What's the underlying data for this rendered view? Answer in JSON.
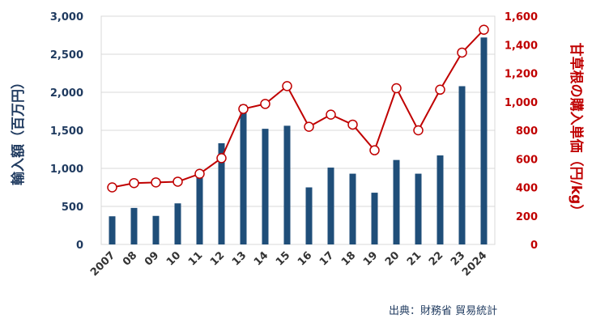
{
  "chart_data": {
    "type": "bar+line",
    "categories": [
      "2007",
      "08",
      "09",
      "10",
      "11",
      "12",
      "13",
      "14",
      "15",
      "16",
      "17",
      "18",
      "19",
      "20",
      "21",
      "22",
      "23",
      "2024"
    ],
    "series": [
      {
        "name": "輸入額（百万円）",
        "type": "bar",
        "axis": "left",
        "color": "#1f4e79",
        "values": [
          370,
          480,
          375,
          540,
          880,
          1330,
          1840,
          1520,
          1560,
          750,
          1010,
          930,
          680,
          1110,
          930,
          1170,
          2080,
          2720
        ]
      },
      {
        "name": "甘草根の購入単価（円/kg）",
        "type": "line",
        "axis": "right",
        "color": "#c00000",
        "values": [
          400,
          430,
          435,
          440,
          495,
          605,
          950,
          985,
          1110,
          825,
          910,
          840,
          660,
          1095,
          800,
          1085,
          1345,
          1505
        ]
      }
    ],
    "y_left": {
      "label": "輸入額（百万円）",
      "range": [
        0,
        3000
      ],
      "ticks": [
        0,
        500,
        1000,
        1500,
        2000,
        2500,
        3000
      ],
      "tick_labels": [
        "0",
        "500",
        "1,000",
        "1,500",
        "2,000",
        "2,500",
        "3,000"
      ],
      "color": "#1f3a5f"
    },
    "y_right": {
      "label": "甘草根の購入単価（円/kg）",
      "range": [
        0,
        1600
      ],
      "ticks": [
        0,
        200,
        400,
        600,
        800,
        1000,
        1200,
        1400,
        1600
      ],
      "tick_labels": [
        "0",
        "200",
        "400",
        "600",
        "800",
        "1,000",
        "1,200",
        "1,400",
        "1,600"
      ],
      "color": "#c00000"
    },
    "grid": true,
    "source": "出典：財務省 貿易統計"
  }
}
